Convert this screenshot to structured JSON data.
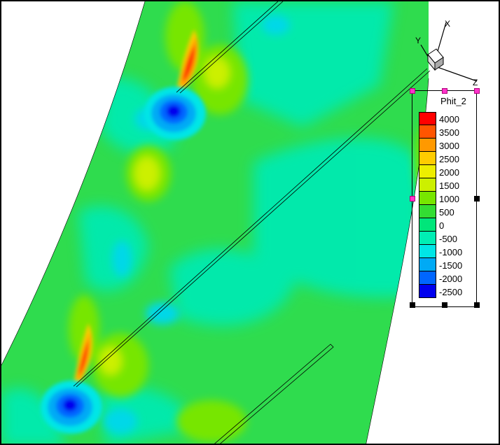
{
  "variable": "Phit_2",
  "legend": {
    "levels": [
      {
        "value": "4000",
        "color": "#ff0000"
      },
      {
        "value": "3500",
        "color": "#ff5500"
      },
      {
        "value": "3000",
        "color": "#ff9900"
      },
      {
        "value": "2500",
        "color": "#ffcc00"
      },
      {
        "value": "2000",
        "color": "#eeee00"
      },
      {
        "value": "1500",
        "color": "#ccf000"
      },
      {
        "value": "1000",
        "color": "#77e600"
      },
      {
        "value": "500",
        "color": "#33dd33"
      },
      {
        "value": "0",
        "color": "#00e67a"
      },
      {
        "value": "-500",
        "color": "#00eeb4"
      },
      {
        "value": "-1000",
        "color": "#00e6e6"
      },
      {
        "value": "-1500",
        "color": "#00aaf5"
      },
      {
        "value": "-2000",
        "color": "#0066ff"
      },
      {
        "value": "-2500",
        "color": "#0000ee"
      }
    ]
  },
  "axes": {
    "x": "X",
    "y": "Y",
    "z": "Z"
  },
  "colors": {
    "field_base": "#33dd55",
    "low_core": "#0000ee",
    "high_core": "#ff0000",
    "blade_outline": "#000000"
  }
}
